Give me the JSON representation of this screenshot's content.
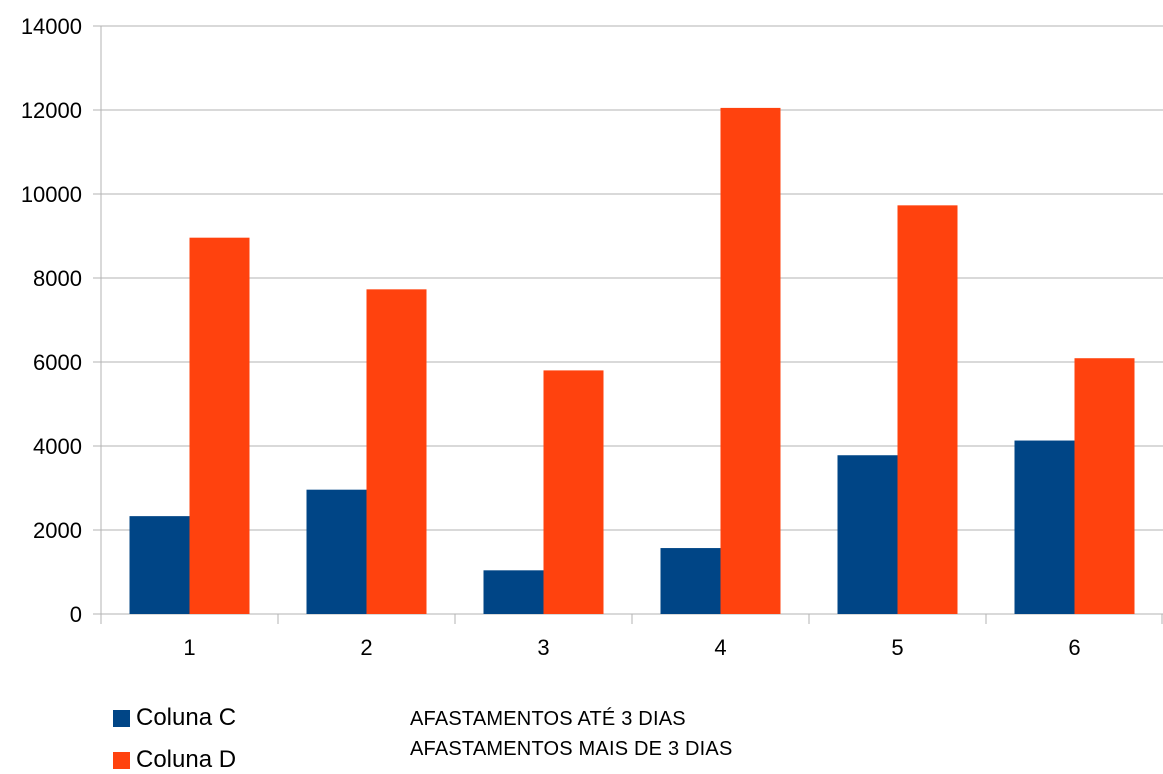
{
  "chart_data": {
    "type": "bar",
    "categories": [
      "1",
      "2",
      "3",
      "4",
      "5",
      "6"
    ],
    "series": [
      {
        "name": "Coluna C",
        "color": "#004586",
        "values": [
          2330,
          2960,
          1040,
          1570,
          3780,
          4130
        ]
      },
      {
        "name": "Coluna D",
        "color": "#ff420e",
        "values": [
          8960,
          7730,
          5800,
          12050,
          9730,
          6090
        ]
      }
    ],
    "ylim": [
      0,
      14000
    ],
    "yticks": [
      "0",
      "2000",
      "4000",
      "6000",
      "8000",
      "10000",
      "12000",
      "14000"
    ],
    "grid": true,
    "legend_position": "bottom-left",
    "title": "",
    "xlabel": "",
    "ylabel": ""
  },
  "notes": [
    "AFASTAMENTOS ATÉ 3 DIAS",
    "AFASTAMENTOS MAIS DE 3 DIAS"
  ]
}
